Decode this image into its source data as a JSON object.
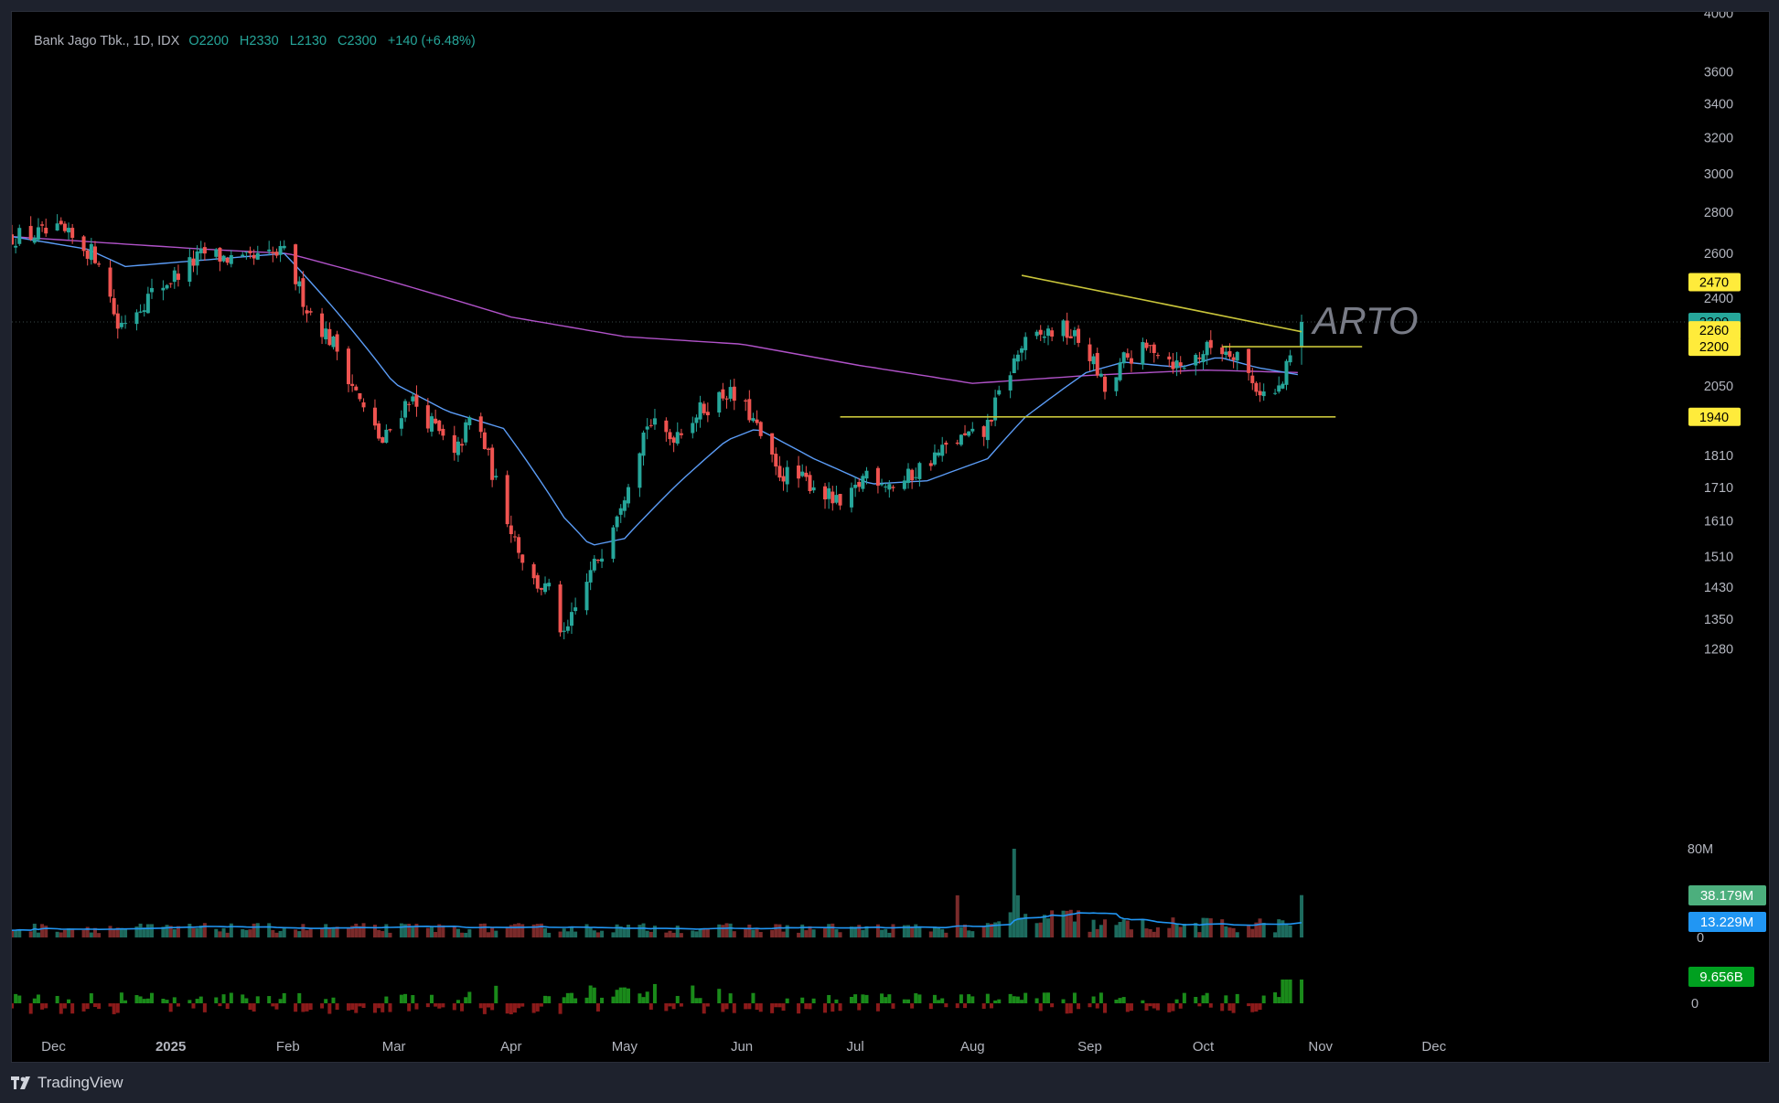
{
  "legend": {
    "name": "Bank Jago Tbk., 1D, IDX",
    "open": "O2200",
    "high": "H2330",
    "low": "L2130",
    "close": "C2300",
    "change": "+140 (+6.48%)"
  },
  "watermark": "ARTO",
  "footer": {
    "brand": "TradingView"
  },
  "colors": {
    "background": "#000000",
    "up": "#26a69a",
    "down": "#ef5350",
    "ma_fast": "#5b9cf6",
    "ma_slow": "#b052c8",
    "trendline": "#c8c43a",
    "label_yellow": "#ffeb3b",
    "volume_label": "#4caf7d",
    "volume_ma_label": "#2196f3",
    "indicator_label": "#00a020"
  },
  "chart_data": {
    "type": "candlestick",
    "symbol": "ARTO",
    "interval": "1D",
    "price_scale": "log",
    "y_ticks": [
      "4000",
      "3600",
      "3400",
      "3200",
      "3000",
      "2800",
      "2600",
      "2400",
      "2050",
      "1810",
      "1710",
      "1610",
      "1510",
      "1430",
      "1350",
      "1280"
    ],
    "x_ticks": [
      {
        "label": "Dec",
        "date": "2024-12-01",
        "bold": false
      },
      {
        "label": "2025",
        "date": "2025-01-01",
        "bold": true
      },
      {
        "label": "Feb",
        "date": "2025-02-01",
        "bold": false
      },
      {
        "label": "Mar",
        "date": "2025-03-01",
        "bold": false
      },
      {
        "label": "Apr",
        "date": "2025-04-01",
        "bold": false
      },
      {
        "label": "May",
        "date": "2025-05-01",
        "bold": false
      },
      {
        "label": "Jun",
        "date": "2025-06-01",
        "bold": false
      },
      {
        "label": "Jul",
        "date": "2025-07-01",
        "bold": false
      },
      {
        "label": "Aug",
        "date": "2025-08-01",
        "bold": false
      },
      {
        "label": "Sep",
        "date": "2025-09-01",
        "bold": false
      },
      {
        "label": "Oct",
        "date": "2025-10-01",
        "bold": false
      },
      {
        "label": "Nov",
        "date": "2025-11-01",
        "bold": false
      },
      {
        "label": "Dec",
        "date": "2025-12-01",
        "bold": false
      }
    ],
    "price_labels": [
      {
        "value": 2470,
        "text": "2470",
        "color": "#ffeb3b",
        "text_color": "#000000"
      },
      {
        "value": 2300,
        "text": "2300",
        "color": "#26a69a",
        "text_color": "#000000"
      },
      {
        "value": 2260,
        "text": "2260",
        "color": "#ffeb3b",
        "text_color": "#000000"
      },
      {
        "value": 2200,
        "text": "2200",
        "color": "#ffeb3b",
        "text_color": "#000000"
      },
      {
        "value": 1940,
        "text": "1940",
        "color": "#ffeb3b",
        "text_color": "#000000"
      }
    ],
    "last_close": 2300,
    "price_anchors": [
      {
        "date": "2024-11-20",
        "price": 2680
      },
      {
        "date": "2024-12-03",
        "price": 2700
      },
      {
        "date": "2024-12-13",
        "price": 2580
      },
      {
        "date": "2024-12-18",
        "price": 2280
      },
      {
        "date": "2024-12-27",
        "price": 2420
      },
      {
        "date": "2025-01-10",
        "price": 2600
      },
      {
        "date": "2025-01-20",
        "price": 2560
      },
      {
        "date": "2025-01-31",
        "price": 2600
      },
      {
        "date": "2025-02-06",
        "price": 2360
      },
      {
        "date": "2025-02-14",
        "price": 2190
      },
      {
        "date": "2025-02-21",
        "price": 1960
      },
      {
        "date": "2025-02-26",
        "price": 1850
      },
      {
        "date": "2025-03-05",
        "price": 2010
      },
      {
        "date": "2025-03-12",
        "price": 1900
      },
      {
        "date": "2025-03-17",
        "price": 1800
      },
      {
        "date": "2025-03-22",
        "price": 1960
      },
      {
        "date": "2025-03-29",
        "price": 1680
      },
      {
        "date": "2025-04-06",
        "price": 1450
      },
      {
        "date": "2025-04-11",
        "price": 1420
      },
      {
        "date": "2025-04-15",
        "price": 1300
      },
      {
        "date": "2025-04-20",
        "price": 1420
      },
      {
        "date": "2025-04-25",
        "price": 1530
      },
      {
        "date": "2025-05-01",
        "price": 1700
      },
      {
        "date": "2025-05-07",
        "price": 1920
      },
      {
        "date": "2025-05-13",
        "price": 1870
      },
      {
        "date": "2025-05-20",
        "price": 1950
      },
      {
        "date": "2025-05-28",
        "price": 2030
      },
      {
        "date": "2025-06-03",
        "price": 1950
      },
      {
        "date": "2025-06-10",
        "price": 1760
      },
      {
        "date": "2025-06-20",
        "price": 1720
      },
      {
        "date": "2025-06-28",
        "price": 1640
      },
      {
        "date": "2025-07-04",
        "price": 1760
      },
      {
        "date": "2025-07-12",
        "price": 1710
      },
      {
        "date": "2025-07-20",
        "price": 1790
      },
      {
        "date": "2025-07-28",
        "price": 1860
      },
      {
        "date": "2025-08-04",
        "price": 1880
      },
      {
        "date": "2025-08-10",
        "price": 2080
      },
      {
        "date": "2025-08-14",
        "price": 2200
      },
      {
        "date": "2025-08-24",
        "price": 2280
      },
      {
        "date": "2025-08-31",
        "price": 2200
      },
      {
        "date": "2025-09-06",
        "price": 2000
      },
      {
        "date": "2025-09-10",
        "price": 2150
      },
      {
        "date": "2025-09-18",
        "price": 2200
      },
      {
        "date": "2025-09-25",
        "price": 2120
      },
      {
        "date": "2025-10-03",
        "price": 2200
      },
      {
        "date": "2025-10-10",
        "price": 2180
      },
      {
        "date": "2025-10-14",
        "price": 2060
      },
      {
        "date": "2025-10-19",
        "price": 2000
      },
      {
        "date": "2025-10-22",
        "price": 2060
      },
      {
        "date": "2025-10-24",
        "price": 2160
      },
      {
        "date": "2025-10-27",
        "price": 2300
      }
    ],
    "ma_fast_anchors": [
      {
        "date": "2024-11-20",
        "price": 2680
      },
      {
        "date": "2024-12-10",
        "price": 2620
      },
      {
        "date": "2024-12-20",
        "price": 2540
      },
      {
        "date": "2025-01-10",
        "price": 2570
      },
      {
        "date": "2025-01-31",
        "price": 2600
      },
      {
        "date": "2025-02-14",
        "price": 2340
      },
      {
        "date": "2025-03-01",
        "price": 2060
      },
      {
        "date": "2025-03-15",
        "price": 1960
      },
      {
        "date": "2025-03-30",
        "price": 1900
      },
      {
        "date": "2025-04-15",
        "price": 1620
      },
      {
        "date": "2025-04-22",
        "price": 1540
      },
      {
        "date": "2025-05-01",
        "price": 1560
      },
      {
        "date": "2025-05-15",
        "price": 1720
      },
      {
        "date": "2025-05-28",
        "price": 1860
      },
      {
        "date": "2025-06-05",
        "price": 1900
      },
      {
        "date": "2025-06-20",
        "price": 1800
      },
      {
        "date": "2025-07-05",
        "price": 1720
      },
      {
        "date": "2025-07-20",
        "price": 1730
      },
      {
        "date": "2025-08-05",
        "price": 1800
      },
      {
        "date": "2025-08-15",
        "price": 1940
      },
      {
        "date": "2025-08-31",
        "price": 2100
      },
      {
        "date": "2025-09-10",
        "price": 2140
      },
      {
        "date": "2025-09-25",
        "price": 2120
      },
      {
        "date": "2025-10-05",
        "price": 2160
      },
      {
        "date": "2025-10-15",
        "price": 2120
      },
      {
        "date": "2025-10-27",
        "price": 2090
      }
    ],
    "ma_slow_anchors": [
      {
        "date": "2024-11-20",
        "price": 2680
      },
      {
        "date": "2024-12-15",
        "price": 2650
      },
      {
        "date": "2025-01-10",
        "price": 2620
      },
      {
        "date": "2025-02-01",
        "price": 2600
      },
      {
        "date": "2025-03-01",
        "price": 2470
      },
      {
        "date": "2025-04-01",
        "price": 2320
      },
      {
        "date": "2025-05-01",
        "price": 2240
      },
      {
        "date": "2025-06-01",
        "price": 2210
      },
      {
        "date": "2025-07-01",
        "price": 2130
      },
      {
        "date": "2025-08-01",
        "price": 2060
      },
      {
        "date": "2025-09-01",
        "price": 2090
      },
      {
        "date": "2025-10-01",
        "price": 2110
      },
      {
        "date": "2025-10-27",
        "price": 2100
      }
    ],
    "drawings": [
      {
        "name": "descending-trendline",
        "from": {
          "date": "2025-08-14",
          "price": 2500
        },
        "to": {
          "date": "2025-10-27",
          "price": 2260
        }
      },
      {
        "name": "resistance-line",
        "from": {
          "date": "2025-10-06",
          "price": 2200
        },
        "to": {
          "date": "2025-11-12",
          "price": 2200
        }
      },
      {
        "name": "support-line",
        "from": {
          "date": "2025-06-27",
          "price": 1940
        },
        "to": {
          "date": "2025-11-05",
          "price": 1940
        }
      }
    ],
    "volume": {
      "axis_labels": [
        "80M",
        "0"
      ],
      "current_label": "38.179M",
      "ma_label": "13.229M",
      "max": 80000000,
      "spikes": [
        {
          "date": "2025-07-28",
          "value": 38000000
        },
        {
          "date": "2025-08-12",
          "value": 80000000
        },
        {
          "date": "2025-08-13",
          "value": 38000000
        },
        {
          "date": "2025-10-04",
          "value": 41000000
        },
        {
          "date": "2025-10-27",
          "value": 38179000
        }
      ]
    },
    "indicator": {
      "axis_label": "0",
      "current_label": "9.656B"
    }
  }
}
